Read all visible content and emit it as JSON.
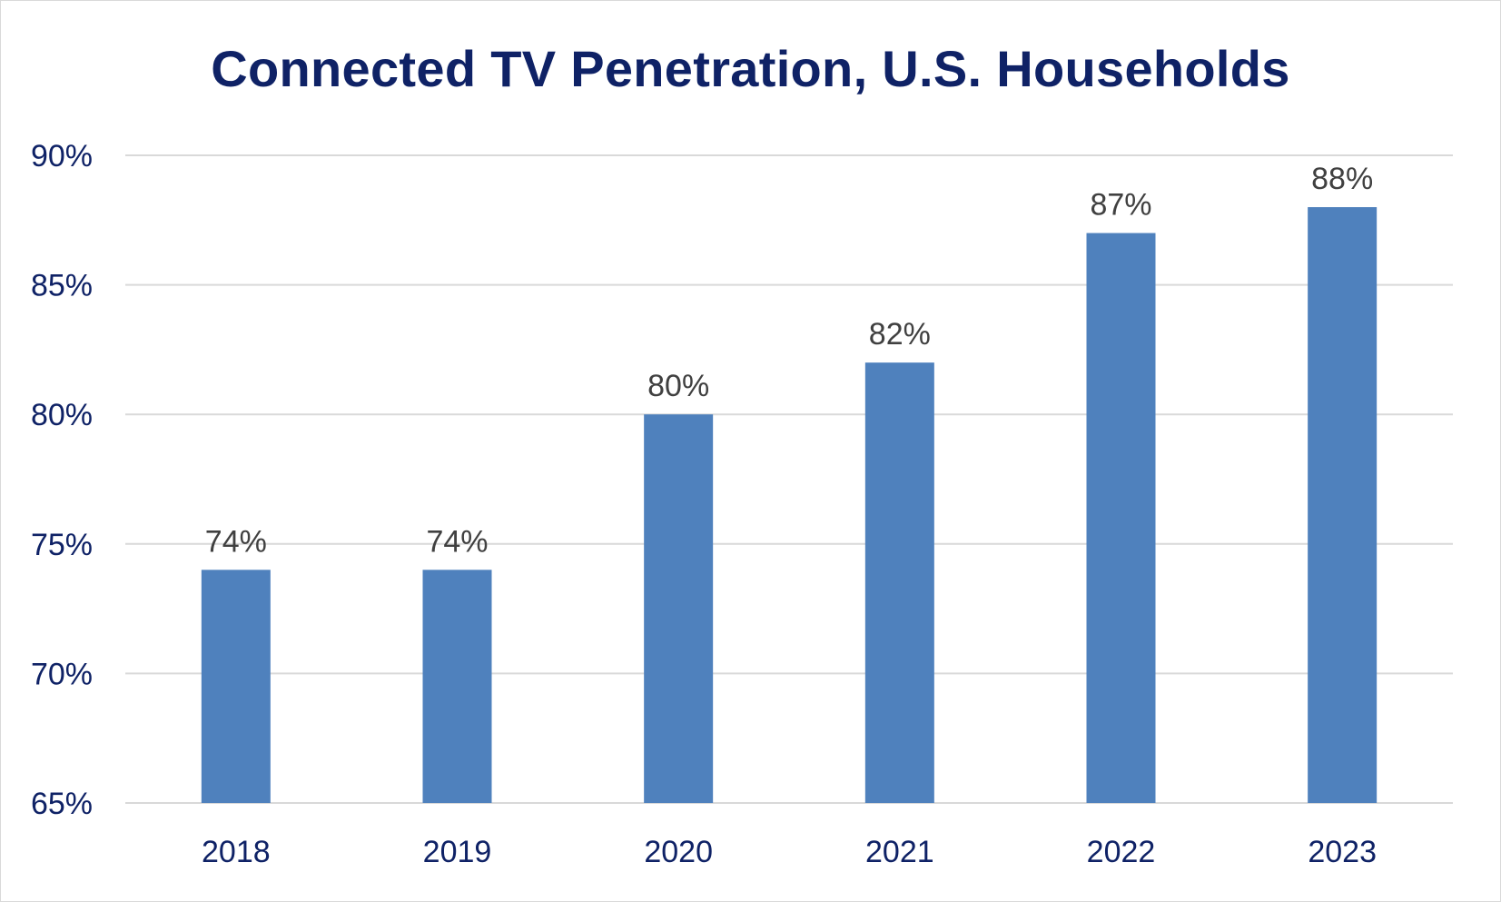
{
  "chart_data": {
    "type": "bar",
    "title": "Connected TV Penetration, U.S. Households",
    "xlabel": "",
    "ylabel": "",
    "categories": [
      "2018",
      "2019",
      "2020",
      "2021",
      "2022",
      "2023"
    ],
    "values": [
      74,
      74,
      80,
      82,
      87,
      88
    ],
    "data_labels": [
      "74%",
      "74%",
      "80%",
      "82%",
      "87%",
      "88%"
    ],
    "ylim": [
      65,
      90
    ],
    "yticks": [
      65,
      70,
      75,
      80,
      85,
      90
    ],
    "ytick_labels": [
      "65%",
      "70%",
      "75%",
      "80%",
      "85%",
      "90%"
    ],
    "grid": true,
    "legend": "none",
    "bar_color": "#4f81bd"
  }
}
